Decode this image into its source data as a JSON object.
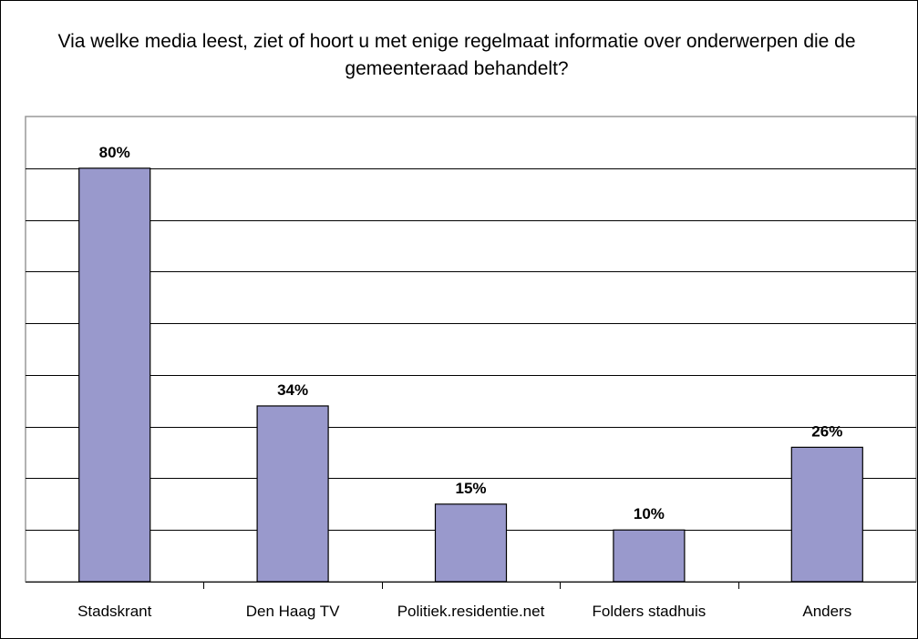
{
  "chart_data": {
    "type": "bar",
    "title": "Via welke media leest, ziet of hoort u met enige regelmaat informatie over onderwerpen die de gemeenteraad behandelt?",
    "categories": [
      "Stadskrant",
      "Den Haag TV",
      "Politiek.residentie.net",
      "Folders stadhuis",
      "Anders"
    ],
    "values": [
      80,
      34,
      15,
      10,
      26
    ],
    "data_labels": [
      "80%",
      "34%",
      "15%",
      "10%",
      "26%"
    ],
    "xlabel": "",
    "ylabel": "",
    "ylim": [
      0,
      90
    ],
    "gridlines": true,
    "legend": "none",
    "colors": {
      "bar_fill": "#9999cc",
      "bar_stroke": "#000000",
      "plot_border": "#999999",
      "grid": "#000000"
    }
  }
}
